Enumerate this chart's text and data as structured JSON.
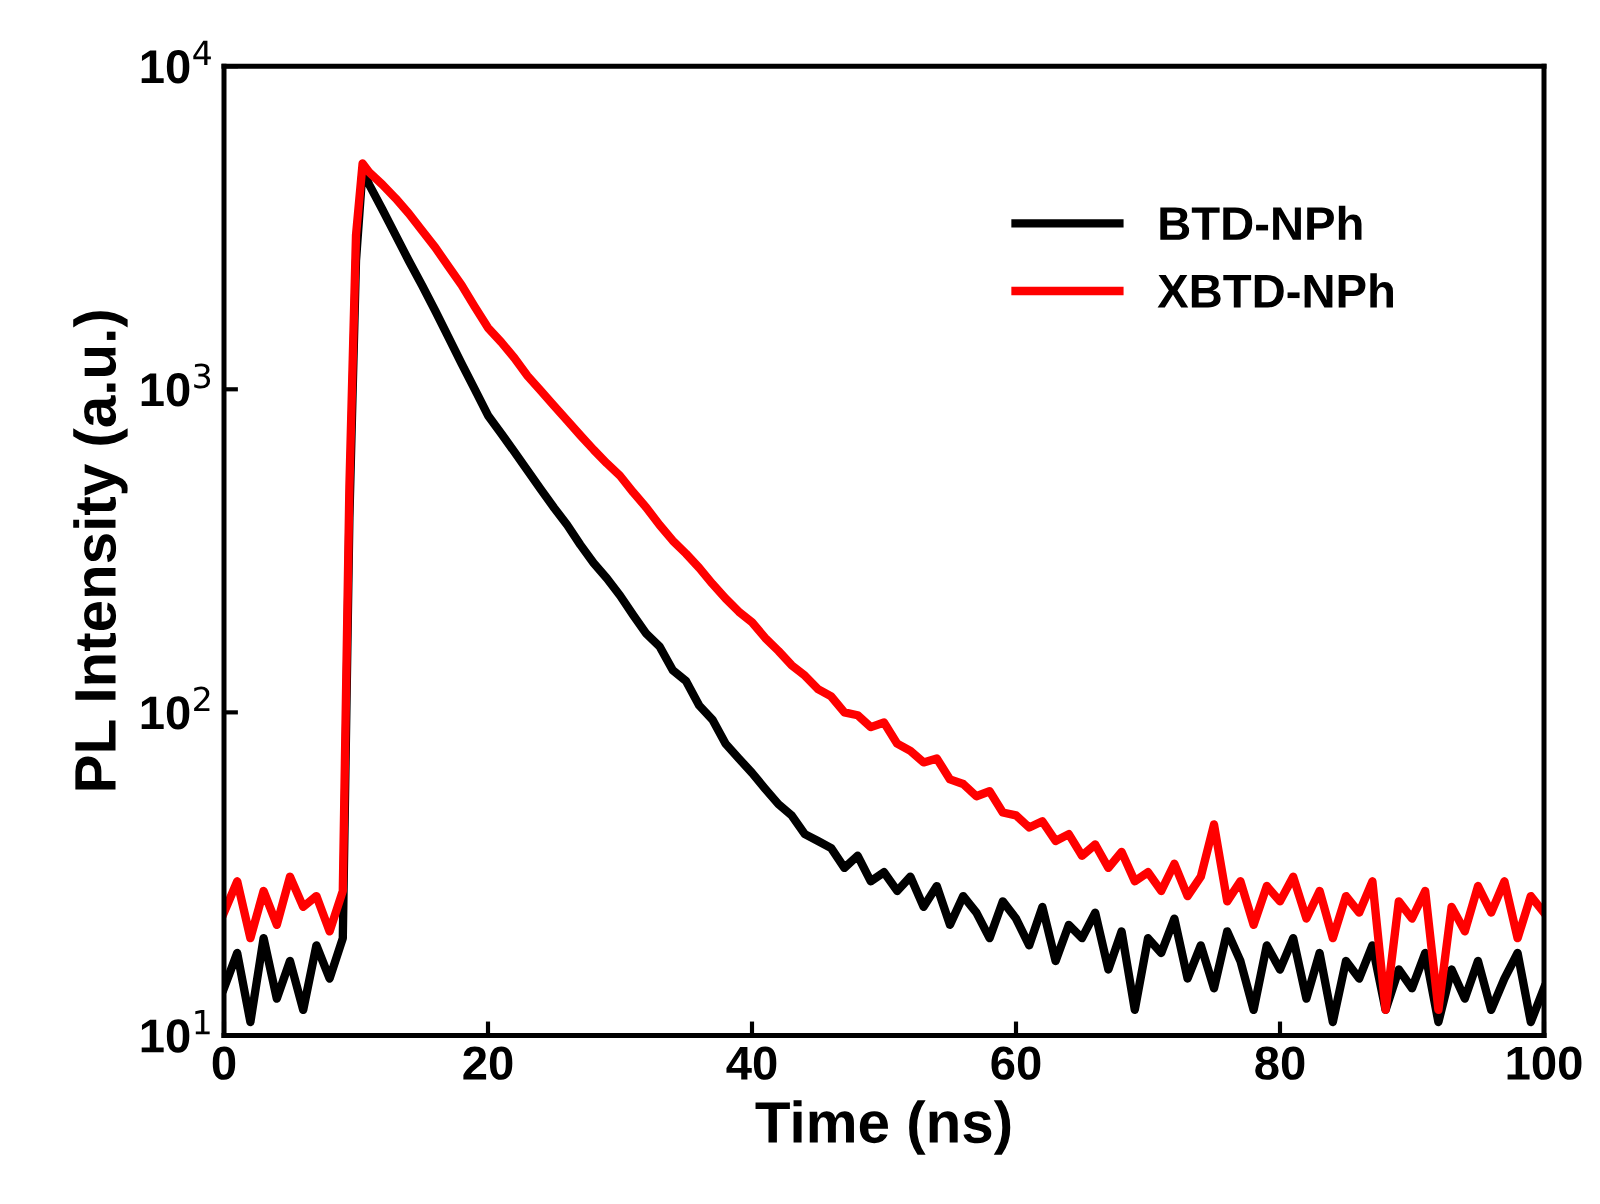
{
  "chart_data": {
    "type": "line",
    "xlabel": "Time (ns)",
    "ylabel": "PL Intensity (a.u.)",
    "x": [
      0,
      1,
      2,
      3,
      4,
      5,
      6,
      7,
      8,
      9,
      9.5,
      10,
      10.5,
      11,
      12,
      13,
      14,
      15,
      16,
      17,
      18,
      19,
      20,
      21,
      22,
      23,
      24,
      25,
      26,
      27,
      28,
      29,
      30,
      31,
      32,
      33,
      34,
      35,
      36,
      37,
      38,
      39,
      40,
      41,
      42,
      43,
      44,
      45,
      46,
      47,
      48,
      49,
      50,
      51,
      52,
      53,
      54,
      55,
      56,
      57,
      58,
      59,
      60,
      61,
      62,
      63,
      64,
      65,
      66,
      67,
      68,
      69,
      70,
      71,
      72,
      73,
      74,
      75,
      76,
      77,
      78,
      79,
      80,
      81,
      82,
      83,
      84,
      85,
      86,
      87,
      88,
      89,
      90,
      91,
      92,
      93,
      94,
      95,
      96,
      97,
      98,
      99,
      100
    ],
    "series": [
      {
        "name": "BTD-NPh",
        "color": "#000000",
        "values": [
          14,
          18,
          11,
          20,
          13,
          17,
          12,
          19,
          15,
          20,
          400,
          2500,
          4800,
          4300,
          3600,
          3000,
          2500,
          2100,
          1750,
          1450,
          1200,
          1000,
          830,
          730,
          640,
          560,
          490,
          430,
          380,
          330,
          290,
          260,
          230,
          200,
          175,
          160,
          135,
          125,
          105,
          95,
          80,
          72,
          65,
          58,
          52,
          48,
          42,
          40,
          38,
          33,
          36,
          30,
          32,
          28,
          31,
          25,
          29,
          22,
          27,
          24,
          20,
          26,
          23,
          19,
          25,
          17,
          22,
          20,
          24,
          16,
          21,
          12,
          20,
          18,
          23,
          15,
          19,
          14,
          21,
          17,
          12,
          19,
          16,
          20,
          13,
          18,
          11,
          17,
          15,
          19,
          12,
          16,
          14,
          18,
          11,
          16,
          13,
          17,
          12,
          15,
          18,
          11,
          14
        ]
      },
      {
        "name": "XBTD-NPh",
        "color": "#ff0000",
        "values": [
          24,
          30,
          20,
          28,
          22,
          31,
          25,
          27,
          21,
          28,
          500,
          3000,
          5000,
          4700,
          4300,
          3900,
          3500,
          3100,
          2750,
          2400,
          2100,
          1800,
          1550,
          1400,
          1250,
          1100,
          990,
          890,
          800,
          720,
          650,
          590,
          540,
          480,
          430,
          380,
          340,
          310,
          280,
          250,
          225,
          205,
          190,
          170,
          155,
          140,
          130,
          118,
          112,
          100,
          98,
          90,
          93,
          80,
          76,
          70,
          72,
          62,
          60,
          55,
          57,
          49,
          48,
          44,
          46,
          40,
          42,
          36,
          39,
          33,
          37,
          30,
          32,
          28,
          34,
          27,
          31,
          45,
          26,
          30,
          22,
          29,
          26,
          31,
          23,
          28,
          20,
          27,
          24,
          30,
          12,
          26,
          23,
          28,
          12,
          25,
          21,
          29,
          24,
          30,
          20,
          27,
          24
        ]
      }
    ],
    "log": "y",
    "xlim": [
      0,
      100
    ],
    "xticks": [
      0,
      20,
      40,
      60,
      80,
      100
    ],
    "ylim": [
      10,
      10000
    ],
    "yticks": [
      {
        "value": 10,
        "label": "10$^{1}$"
      },
      {
        "value": 100,
        "label": "10$^{2}$"
      },
      {
        "value": 1000,
        "label": "10$^{3}$"
      },
      {
        "value": 10000,
        "label": "10$^{4}$"
      }
    ],
    "legend": "top right",
    "grid": false,
    "marker": "none",
    "line_style": "solid"
  }
}
